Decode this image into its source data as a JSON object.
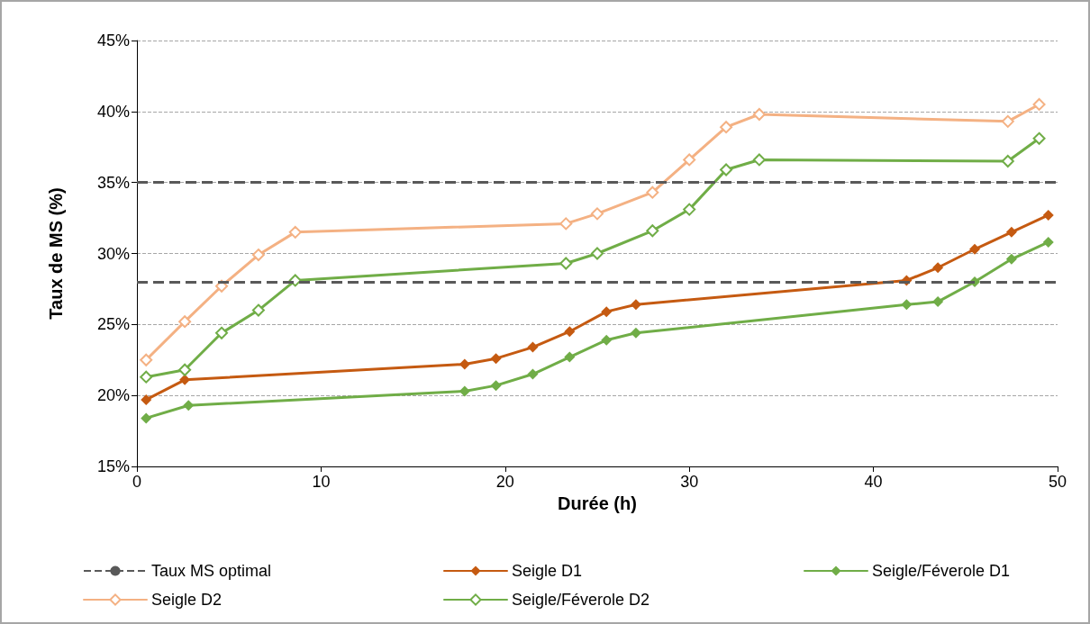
{
  "chart_data": {
    "type": "line",
    "xlabel": "Durée (h)",
    "ylabel": "Taux de MS (%)",
    "xlim": [
      0,
      50
    ],
    "xticks": [
      0,
      10,
      20,
      30,
      40,
      50
    ],
    "ylim": [
      15,
      45
    ],
    "yticks": [
      {
        "value": 15,
        "label": "15%"
      },
      {
        "value": 20,
        "label": "20%"
      },
      {
        "value": 25,
        "label": "25%"
      },
      {
        "value": 30,
        "label": "30%"
      },
      {
        "value": 35,
        "label": "35%"
      },
      {
        "value": 40,
        "label": "40%"
      },
      {
        "value": 45,
        "label": "45%"
      }
    ],
    "grid": "y",
    "legend": "bottom",
    "marker": "diamond",
    "line_style": "solid",
    "ref_lines": [
      {
        "axis": "y",
        "value": 35,
        "label": "Taux MS optimal",
        "color": "#595959",
        "line_style": "dashed"
      },
      {
        "axis": "y",
        "value": 28,
        "color": "#595959",
        "line_style": "dashed"
      }
    ],
    "series": [
      {
        "name": "Seigle D1",
        "color": "#c55a11",
        "x": [
          0.5,
          2.6,
          17.8,
          19.5,
          21.5,
          23.5,
          25.5,
          27.1,
          41.8,
          43.5,
          45.5,
          47.5,
          49.5
        ],
        "values": [
          19.7,
          21.1,
          22.2,
          22.6,
          23.4,
          24.5,
          25.9,
          26.4,
          28.1,
          29.0,
          30.3,
          31.5,
          32.7
        ]
      },
      {
        "name": "Seigle/Féverole D1",
        "color": "#70ad47",
        "x": [
          0.5,
          2.8,
          17.8,
          19.5,
          21.5,
          23.5,
          25.5,
          27.1,
          41.8,
          43.5,
          45.5,
          47.5,
          49.5
        ],
        "values": [
          18.4,
          19.3,
          20.3,
          20.7,
          21.5,
          22.7,
          23.9,
          24.4,
          26.4,
          26.6,
          28.0,
          29.6,
          30.8
        ]
      },
      {
        "name": "Seigle D2",
        "color": "#f4b183",
        "x": [
          0.5,
          2.6,
          4.6,
          6.6,
          8.6,
          23.3,
          25.0,
          28.0,
          30.0,
          32.0,
          33.8,
          47.3,
          49.0
        ],
        "values": [
          22.5,
          25.2,
          27.7,
          29.9,
          31.5,
          32.1,
          32.8,
          34.3,
          36.6,
          38.9,
          39.8,
          39.3,
          40.5
        ]
      },
      {
        "name": "Seigle/Féverole D2",
        "color": "#70ad47",
        "x": [
          0.5,
          2.6,
          4.6,
          6.6,
          8.6,
          23.3,
          25.0,
          28.0,
          30.0,
          32.0,
          33.8,
          47.3,
          49.0
        ],
        "values": [
          21.3,
          21.8,
          24.4,
          26.0,
          28.1,
          29.3,
          30.0,
          31.6,
          33.1,
          35.9,
          36.6,
          36.5,
          38.1
        ]
      }
    ]
  }
}
